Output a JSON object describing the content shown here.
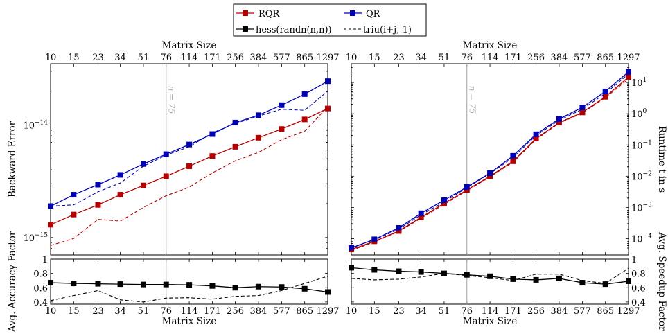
{
  "legend": {
    "items": [
      {
        "key": "RQR",
        "label": "RQR",
        "color": "#b30000",
        "dash": "solid",
        "marker": "square"
      },
      {
        "key": "QR",
        "label": "QR",
        "color": "#0000b3",
        "dash": "solid",
        "marker": "square"
      },
      {
        "key": "hess",
        "label": "hess(randn(n,n))",
        "color": "#000000",
        "dash": "solid",
        "marker": "square"
      },
      {
        "key": "triu",
        "label": "triu(i+j,-1)",
        "color": "#000000",
        "dash": "dashed",
        "marker": "none"
      }
    ]
  },
  "chart_data": [
    {
      "id": "backward-error",
      "type": "line",
      "x": [
        10,
        15,
        23,
        34,
        51,
        76,
        114,
        171,
        256,
        384,
        577,
        865,
        1297
      ],
      "x_scale": "log",
      "y_scale": "log",
      "xlabel": "Matrix Size",
      "ylabel": "Backward Error",
      "ylim": [
        7e-16,
        3.5e-14
      ],
      "yticks": [
        {
          "value": 1e-15,
          "label": "10",
          "exp": "−15"
        },
        {
          "value": 1e-14,
          "label": "10",
          "exp": "−14"
        }
      ],
      "annotation": {
        "x": 76,
        "label": "n = 75"
      },
      "series": [
        {
          "name": "RQR",
          "key": "RQR",
          "dash": "solid",
          "values": [
            1.3e-15,
            1.6e-15,
            1.95e-15,
            2.4e-15,
            2.9e-15,
            3.5e-15,
            4.3e-15,
            5.3e-15,
            6.4e-15,
            7.7e-15,
            9.2e-15,
            1.12e-14,
            1.4e-14
          ]
        },
        {
          "name": "QR",
          "key": "QR",
          "dash": "solid",
          "values": [
            1.9e-15,
            2.4e-15,
            2.95e-15,
            3.6e-15,
            4.5e-15,
            5.5e-15,
            6.7e-15,
            8.3e-15,
            1.05e-14,
            1.22e-14,
            1.5e-14,
            1.88e-14,
            2.45e-14
          ]
        },
        {
          "name": "",
          "key": "QR",
          "dash": "dashed",
          "values": [
            1.9e-15,
            1.95e-15,
            2.55e-15,
            3.05e-15,
            4.3e-15,
            5.4e-15,
            6.4e-15,
            8.5e-15,
            1.03e-14,
            1.2e-14,
            1.38e-14,
            1.35e-14,
            2e-14
          ]
        },
        {
          "name": "",
          "key": "RQR",
          "dash": "dashed",
          "values": [
            8.5e-16,
            9.8e-16,
            1.45e-15,
            1.4e-15,
            1.85e-15,
            2.35e-15,
            2.8e-15,
            3.75e-15,
            4.8e-15,
            5.7e-15,
            7.4e-15,
            8.8e-15,
            1.45e-14
          ]
        }
      ]
    },
    {
      "id": "runtime",
      "type": "line",
      "x": [
        10,
        15,
        23,
        34,
        51,
        76,
        114,
        171,
        256,
        384,
        577,
        865,
        1297
      ],
      "x_scale": "log",
      "y_scale": "log",
      "xlabel": "Matrix Size",
      "ylabel": "Runtime t in s",
      "ylim": [
        3e-05,
        40
      ],
      "yticks": [
        {
          "value": 0.0001,
          "label": "10",
          "exp": "−4"
        },
        {
          "value": 0.001,
          "label": "10",
          "exp": "−3"
        },
        {
          "value": 0.01,
          "label": "10",
          "exp": "−2"
        },
        {
          "value": 0.1,
          "label": "10",
          "exp": "−1"
        },
        {
          "value": 1,
          "label": "10",
          "exp": "0"
        },
        {
          "value": 10,
          "label": "10",
          "exp": "1"
        }
      ],
      "annotation": {
        "x": 76,
        "label": "n = 75"
      },
      "series": [
        {
          "name": "RQR",
          "key": "RQR",
          "dash": "solid",
          "values": [
            4.5e-05,
            8.2e-05,
            0.000175,
            0.00048,
            0.00135,
            0.0036,
            0.01,
            0.03,
            0.16,
            0.52,
            1.1,
            3.5,
            15
          ]
        },
        {
          "name": "QR",
          "key": "QR",
          "dash": "solid",
          "values": [
            5e-05,
            9.5e-05,
            0.00022,
            0.00065,
            0.0017,
            0.0045,
            0.0125,
            0.045,
            0.22,
            0.68,
            1.6,
            5.2,
            22
          ]
        },
        {
          "name": "",
          "key": "QR",
          "dash": "dashed",
          "values": [
            5.3e-05,
            9e-05,
            0.0002,
            0.00058,
            0.0015,
            0.0043,
            0.012,
            0.04,
            0.2,
            0.62,
            1.4,
            4.5,
            19
          ]
        },
        {
          "name": "",
          "key": "RQR",
          "dash": "dashed",
          "values": [
            4.2e-05,
            7.8e-05,
            0.00017,
            0.00045,
            0.00125,
            0.0034,
            0.0095,
            0.028,
            0.15,
            0.5,
            1.05,
            3.3,
            13
          ]
        }
      ]
    },
    {
      "id": "accuracy-factor",
      "type": "line",
      "x": [
        10,
        15,
        23,
        34,
        51,
        76,
        114,
        171,
        256,
        384,
        577,
        865,
        1297
      ],
      "x_scale": "log",
      "xlabel": "Matrix Size",
      "ylabel": "Avg. Accuracy Factor",
      "ylim": [
        0.37,
        1.0
      ],
      "yticks": [
        {
          "value": 0.4,
          "label": "0.4"
        },
        {
          "value": 0.6,
          "label": "0.6"
        },
        {
          "value": 0.8,
          "label": "0.8"
        },
        {
          "value": 1,
          "label": "1"
        }
      ],
      "series": [
        {
          "name": "hess(randn(n,n))",
          "key": "hess",
          "dash": "solid",
          "values": [
            0.67,
            0.66,
            0.655,
            0.65,
            0.645,
            0.645,
            0.64,
            0.625,
            0.6,
            0.615,
            0.61,
            0.585,
            0.54
          ]
        },
        {
          "name": "triu(i+j,-1)",
          "key": "triu",
          "dash": "dashed",
          "values": [
            0.42,
            0.49,
            0.56,
            0.43,
            0.4,
            0.455,
            0.46,
            0.44,
            0.48,
            0.49,
            0.56,
            0.66,
            0.76
          ]
        }
      ]
    },
    {
      "id": "speedup-factor",
      "type": "line",
      "x": [
        10,
        15,
        23,
        34,
        51,
        76,
        114,
        171,
        256,
        384,
        577,
        865,
        1297
      ],
      "x_scale": "log",
      "xlabel": "Matrix Size",
      "ylabel": "Avg. Speedup Factor",
      "ylim": [
        0.37,
        1.0
      ],
      "yticks": [
        {
          "value": 0.4,
          "label": "0.4"
        },
        {
          "value": 0.6,
          "label": "0.6"
        },
        {
          "value": 0.8,
          "label": "0.8"
        },
        {
          "value": 1,
          "label": "1"
        }
      ],
      "series": [
        {
          "name": "hess(randn(n,n))",
          "key": "hess",
          "dash": "solid",
          "values": [
            0.88,
            0.85,
            0.83,
            0.82,
            0.8,
            0.78,
            0.76,
            0.72,
            0.71,
            0.73,
            0.67,
            0.65,
            0.69
          ]
        },
        {
          "name": "triu(i+j,-1)",
          "key": "triu",
          "dash": "dashed",
          "values": [
            0.73,
            0.71,
            0.72,
            0.75,
            0.8,
            0.77,
            0.74,
            0.7,
            0.79,
            0.79,
            0.7,
            0.66,
            0.87
          ]
        }
      ]
    }
  ]
}
